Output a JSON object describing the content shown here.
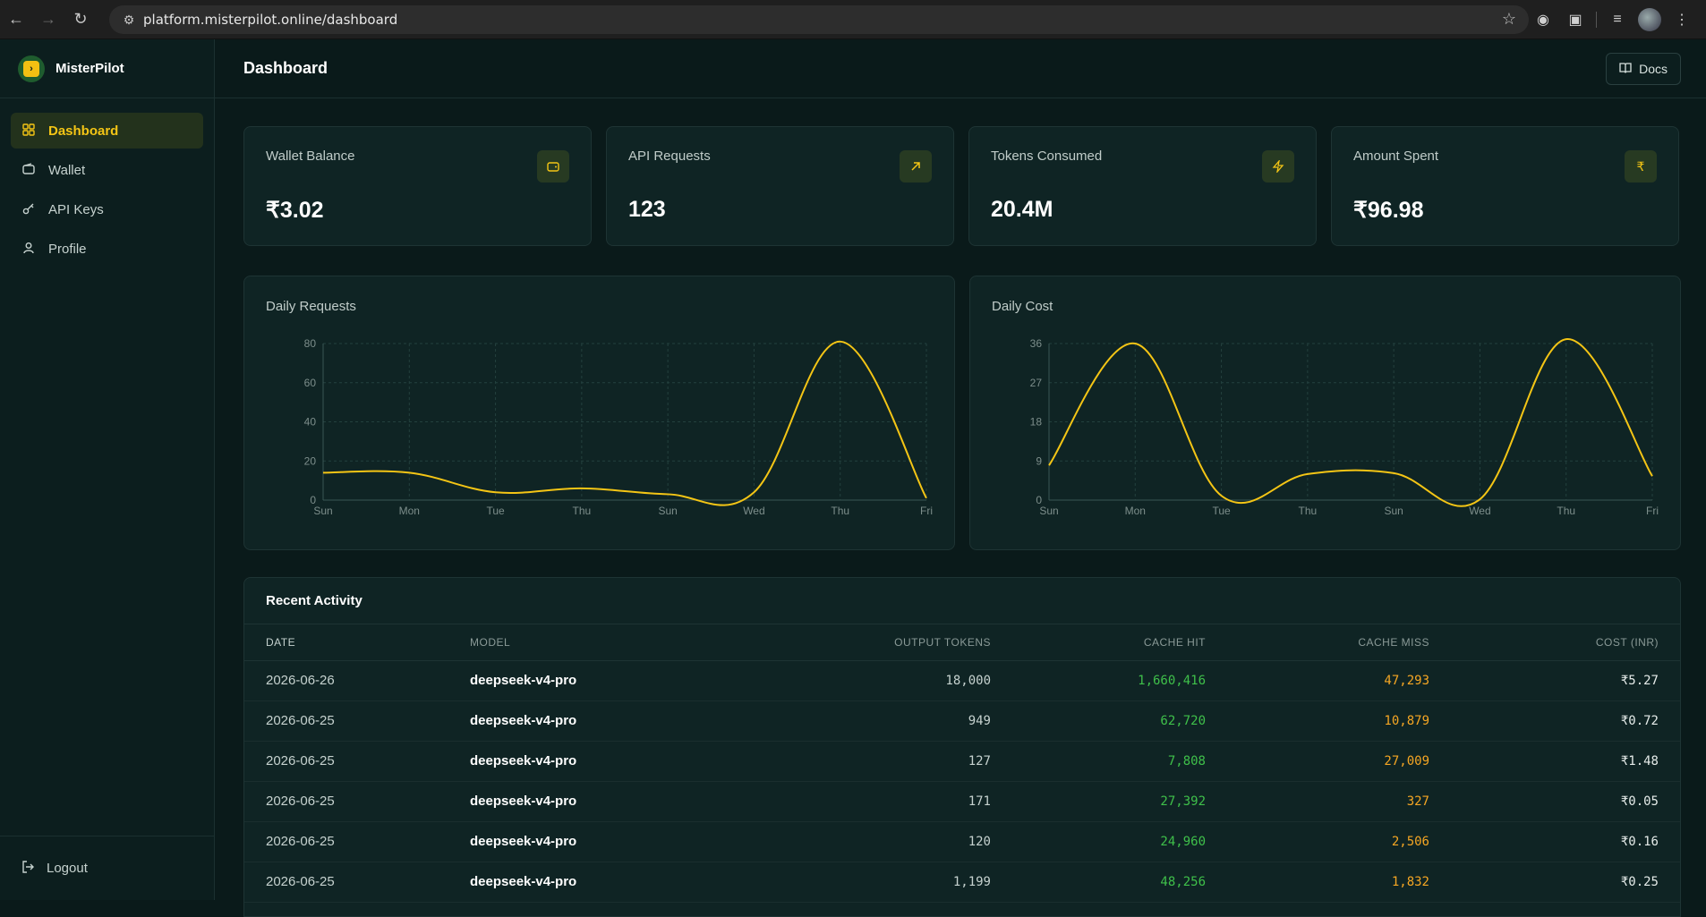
{
  "browser": {
    "url": "platform.misterpilot.online/dashboard"
  },
  "sidebar": {
    "brand": "MisterPilot",
    "items": [
      {
        "label": "Dashboard",
        "icon": "grid-icon",
        "active": true
      },
      {
        "label": "Wallet",
        "icon": "wallet-icon",
        "active": false
      },
      {
        "label": "API Keys",
        "icon": "key-icon",
        "active": false
      },
      {
        "label": "Profile",
        "icon": "user-icon",
        "active": false
      }
    ],
    "logout": "Logout"
  },
  "header": {
    "title": "Dashboard",
    "docs_label": "Docs"
  },
  "cards": [
    {
      "label": "Wallet Balance",
      "value": "₹3.02",
      "icon": "wallet-icon"
    },
    {
      "label": "API Requests",
      "value": "123",
      "icon": "arrow-up-right-icon"
    },
    {
      "label": "Tokens Consumed",
      "value": "20.4M",
      "icon": "lightning-icon"
    },
    {
      "label": "Amount Spent",
      "value": "₹96.98",
      "icon": "rupee-icon"
    }
  ],
  "colors": {
    "accent": "#f4c515",
    "hit": "#3fc04a",
    "miss": "#f5a623"
  },
  "chart_data": [
    {
      "type": "line",
      "title": "Daily Requests",
      "x": [
        "Sun",
        "Mon",
        "Tue",
        "Thu",
        "Sun",
        "Wed",
        "Thu",
        "Fri"
      ],
      "series": [
        {
          "values": [
            14,
            14,
            4,
            6,
            3,
            4,
            81,
            1
          ]
        }
      ],
      "ylim": [
        0,
        80
      ],
      "yticks": [
        0,
        20,
        40,
        60,
        80
      ],
      "grid": true
    },
    {
      "type": "line",
      "title": "Daily Cost",
      "x": [
        "Sun",
        "Mon",
        "Tue",
        "Thu",
        "Sun",
        "Wed",
        "Thu",
        "Fri"
      ],
      "series": [
        {
          "values": [
            8,
            36,
            1,
            6,
            6.2,
            0.2,
            37,
            5.5
          ]
        }
      ],
      "ylim": [
        0,
        36
      ],
      "yticks": [
        0,
        9,
        18,
        27,
        36
      ],
      "grid": true
    }
  ],
  "activity": {
    "title": "Recent Activity",
    "columns": [
      "DATE",
      "MODEL",
      "OUTPUT TOKENS",
      "CACHE HIT",
      "CACHE MISS",
      "COST (INR)"
    ],
    "rows": [
      [
        "2026-06-26",
        "deepseek-v4-pro",
        "18,000",
        "1,660,416",
        "47,293",
        "₹5.27"
      ],
      [
        "2026-06-25",
        "deepseek-v4-pro",
        "949",
        "62,720",
        "10,879",
        "₹0.72"
      ],
      [
        "2026-06-25",
        "deepseek-v4-pro",
        "127",
        "7,808",
        "27,009",
        "₹1.48"
      ],
      [
        "2026-06-25",
        "deepseek-v4-pro",
        "171",
        "27,392",
        "327",
        "₹0.05"
      ],
      [
        "2026-06-25",
        "deepseek-v4-pro",
        "120",
        "24,960",
        "2,506",
        "₹0.16"
      ],
      [
        "2026-06-25",
        "deepseek-v4-pro",
        "1,199",
        "48,256",
        "1,832",
        "₹0.25"
      ]
    ]
  }
}
